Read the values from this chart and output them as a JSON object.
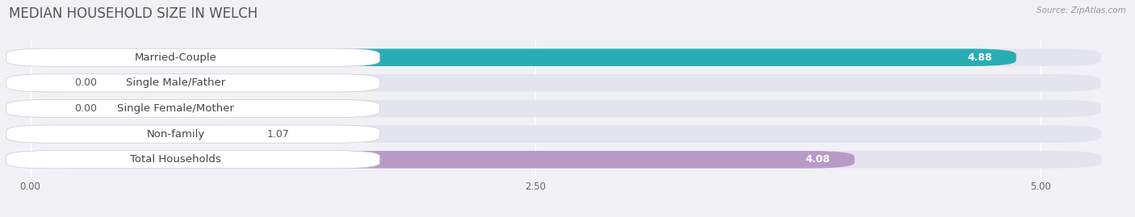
{
  "title": "MEDIAN HOUSEHOLD SIZE IN WELCH",
  "source": "Source: ZipAtlas.com",
  "categories": [
    "Married-Couple",
    "Single Male/Father",
    "Single Female/Mother",
    "Non-family",
    "Total Households"
  ],
  "values": [
    4.88,
    0.0,
    0.0,
    1.07,
    4.08
  ],
  "bar_colors": [
    "#29adb5",
    "#a8bce8",
    "#f2a0b2",
    "#f5c98a",
    "#b89ac8"
  ],
  "background_color": "#f0f0f5",
  "bar_bg_color": "#e4e4ee",
  "xlim_data": [
    0,
    5.0
  ],
  "x_max_display": 5.3,
  "xticks": [
    0.0,
    2.5,
    5.0
  ],
  "xtick_labels": [
    "0.00",
    "2.50",
    "5.00"
  ],
  "title_fontsize": 12,
  "label_fontsize": 9.5,
  "value_fontsize": 9
}
